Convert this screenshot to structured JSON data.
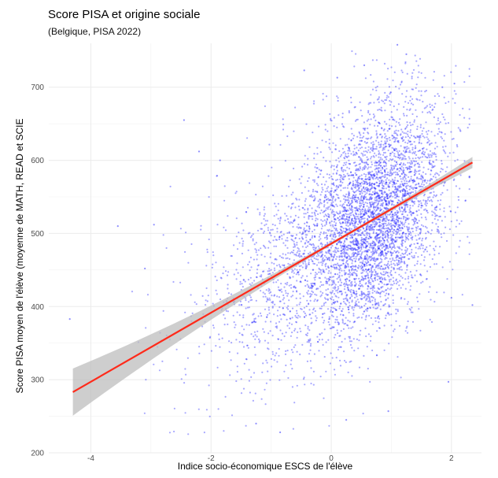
{
  "chart_data": {
    "type": "scatter",
    "title": "Score PISA et origine sociale",
    "subtitle": "(Belgique, PISA 2022)",
    "xlabel": "Indice socio-économique ESCS de l'élève",
    "ylabel": "Score PISA moyen de l'élève (moyenne de MATH, READ et SCIE",
    "xlim": [
      -4.7,
      2.5
    ],
    "ylim": [
      200,
      760
    ],
    "x_ticks": [
      -4,
      -2,
      0,
      2
    ],
    "y_ticks": [
      200,
      300,
      400,
      500,
      600,
      700
    ],
    "grid": true,
    "points_color": "#1f1fff",
    "fit_color": "#ff2a1a",
    "fit_band_color": "#bdbdbd",
    "fit_line": {
      "x": [
        -4.3,
        2.35
      ],
      "y": [
        283,
        597
      ]
    },
    "points": [
      {
        "x": -4.35,
        "y": 383
      },
      {
        "x": -3.55,
        "y": 510
      },
      {
        "x": -3.1,
        "y": 452
      },
      {
        "x": -2.95,
        "y": 512
      },
      {
        "x": -2.45,
        "y": 655
      },
      {
        "x": -2.2,
        "y": 612
      },
      {
        "x": -1.85,
        "y": 600
      },
      {
        "x": -1.25,
        "y": 240
      },
      {
        "x": -0.85,
        "y": 228
      },
      {
        "x": -0.45,
        "y": 723
      },
      {
        "x": 0.1,
        "y": 713
      },
      {
        "x": 0.25,
        "y": 245
      },
      {
        "x": 0.55,
        "y": 730
      },
      {
        "x": 0.95,
        "y": 257
      },
      {
        "x": 1.1,
        "y": 758
      },
      {
        "x": 1.25,
        "y": 745
      },
      {
        "x": 1.85,
        "y": 700
      },
      {
        "x": 2.05,
        "y": 705
      },
      {
        "x": 2.15,
        "y": 640
      },
      {
        "x": 2.35,
        "y": 402
      },
      {
        "x": 1.95,
        "y": 297
      },
      {
        "x": 2.0,
        "y": 412
      }
    ]
  }
}
